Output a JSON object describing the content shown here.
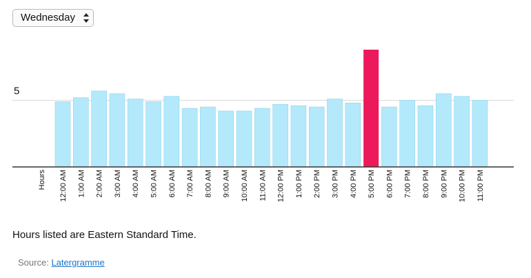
{
  "selector": {
    "value": "Wednesday"
  },
  "chart_data": {
    "type": "bar",
    "ylabel": "Hours",
    "y_ticks": [
      5
    ],
    "ylim": [
      0,
      8.8
    ],
    "categories": [
      "12:00 AM",
      "1:00 AM",
      "2:00 AM",
      "3:00 AM",
      "4:00 AM",
      "5:00 AM",
      "6:00 AM",
      "7:00 AM",
      "8:00 AM",
      "9:00 AM",
      "10:00 AM",
      "11:00 AM",
      "12:00 PM",
      "1:00 PM",
      "2:00 PM",
      "3:00 PM",
      "4:00 PM",
      "5:00 PM",
      "6:00 PM",
      "7:00 PM",
      "8:00 PM",
      "9:00 PM",
      "10:00 PM",
      "11:00 PM"
    ],
    "values": [
      4.9,
      5.2,
      5.7,
      5.5,
      5.1,
      4.9,
      5.3,
      4.4,
      4.5,
      4.2,
      4.2,
      4.4,
      4.7,
      4.6,
      4.5,
      5.1,
      4.8,
      8.8,
      4.5,
      5.0,
      4.6,
      5.5,
      5.3,
      5.0
    ],
    "highlight_index": 17,
    "grid": true,
    "colors": {
      "bar": "#b3e9fb",
      "bar_border": "#93d4ea",
      "highlight": "#ec1a5c",
      "grid": "#d8d8d8",
      "axis": "#333333"
    }
  },
  "footnote": "Hours listed are Eastern Standard Time.",
  "source": {
    "label": "Source:",
    "link_text": "Latergramme"
  }
}
